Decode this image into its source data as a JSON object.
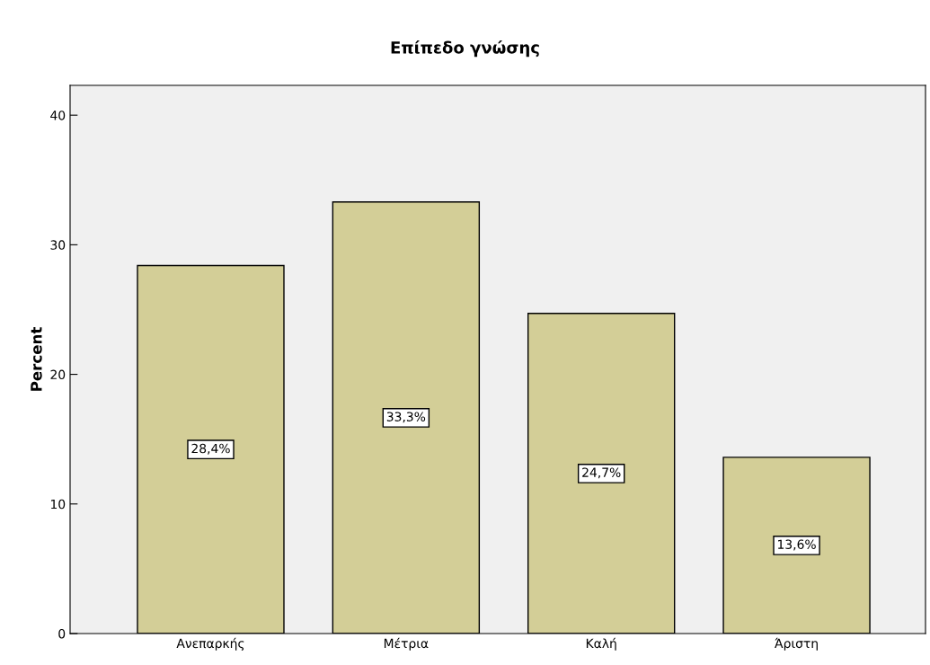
{
  "chart_data": {
    "type": "bar",
    "title": "Επίπεδο γνώσης",
    "ylabel": "Percent",
    "categories": [
      "Ανεπαρκής",
      "Μέτρια",
      "Καλή",
      "Άριστη"
    ],
    "values": [
      28.4,
      33.3,
      24.7,
      13.6
    ],
    "value_labels": [
      "28,4%",
      "33,3%",
      "24,7%",
      "13,6%"
    ],
    "color": "#d3ce97",
    "ylim": [
      0,
      42.3
    ],
    "yticks": [
      0,
      10,
      20,
      30,
      40
    ],
    "grid": false,
    "legend": false
  }
}
